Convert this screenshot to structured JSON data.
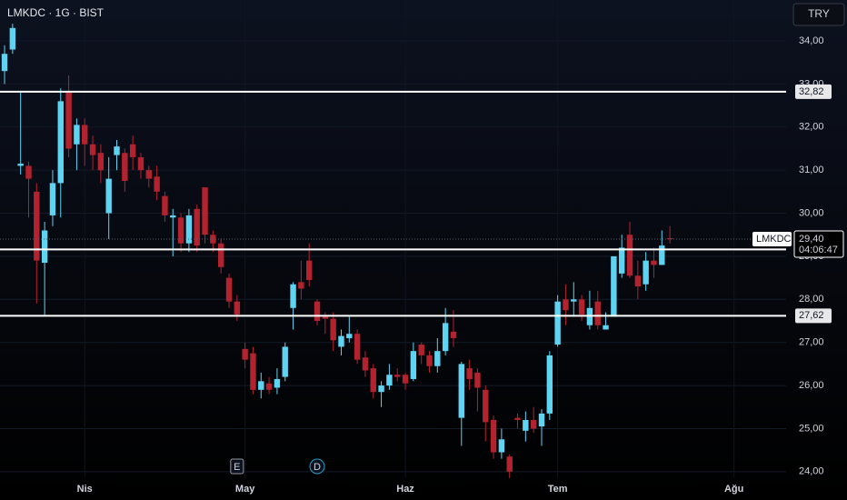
{
  "chart_data": {
    "type": "candlestick",
    "title": "LMKDC · 1G · BIST",
    "currency": "TRY",
    "symbol": "LMKDC",
    "up_color": "#5ed4f2",
    "down_color": "#b3222f",
    "ylim": [
      23.87,
      34.95
    ],
    "xlim": [
      -0.57,
      97.5
    ],
    "yticks": [
      {
        "value": 24,
        "label": "24,00"
      },
      {
        "value": 25,
        "label": "25,00"
      },
      {
        "value": 26,
        "label": "26,00"
      },
      {
        "value": 27,
        "label": "27,00"
      },
      {
        "value": 28,
        "label": "28,00"
      },
      {
        "value": 29,
        "label": "29,00"
      },
      {
        "value": 30,
        "label": "30,00"
      },
      {
        "value": 31,
        "label": "31,00"
      },
      {
        "value": 32,
        "label": "32,00"
      },
      {
        "value": 33,
        "label": "33,00"
      },
      {
        "value": 34,
        "label": "34,00"
      }
    ],
    "xticks": [
      {
        "value": 10,
        "label": "Nis"
      },
      {
        "value": 30,
        "label": "May"
      },
      {
        "value": 50,
        "label": "Haz"
      },
      {
        "value": 69,
        "label": "Tem"
      },
      {
        "value": 91,
        "label": "Ağu"
      }
    ],
    "levels": [
      {
        "value": 32.82,
        "label": "32,82"
      },
      {
        "value": 29.16,
        "label": "29,16"
      },
      {
        "value": 27.62,
        "label": "27,62"
      }
    ],
    "last_price": {
      "value": 29.4,
      "label": "29,40"
    },
    "countdown": "04:06:47",
    "events": [
      {
        "x": 29,
        "label": "E"
      },
      {
        "x": 39,
        "label": "D"
      }
    ],
    "open": [
      33.3,
      33.8,
      31.1,
      31.1,
      30.5,
      28.85,
      29.95,
      30.7,
      32.8,
      31.6,
      32.05,
      31.6,
      31.4,
      30.0,
      31.35,
      31.4,
      31.6,
      31.3,
      31.0,
      30.85,
      30.4,
      29.9,
      29.9,
      29.3,
      30.1,
      30.6,
      29.5,
      29.3,
      28.5,
      27.95,
      26.85,
      26.75,
      25.9,
      26.05,
      25.95,
      26.2,
      27.8,
      28.4,
      28.9,
      27.95,
      27.6,
      27.55,
      26.9,
      27.1,
      27.2,
      26.65,
      26.4,
      25.85,
      26.0,
      26.25,
      26.25,
      26.15,
      26.95,
      26.7,
      26.45,
      26.8,
      27.25,
      25.25,
      26.4,
      26.3,
      25.9,
      25.2,
      24.45,
      24.35,
      25.25,
      24.95,
      25.2,
      25.05,
      25.35,
      26.95,
      28.0,
      27.95,
      28.0,
      27.4,
      27.95,
      27.3,
      27.6,
      28.6,
      29.5,
      28.55,
      28.35,
      28.9,
      28.8,
      29.42
    ],
    "high": [
      33.9,
      34.4,
      32.8,
      31.2,
      30.7,
      29.8,
      31.0,
      32.9,
      33.2,
      32.2,
      32.2,
      31.8,
      31.6,
      31.3,
      31.7,
      31.5,
      31.8,
      31.4,
      31.1,
      31.1,
      30.5,
      30.1,
      30.0,
      30.1,
      30.2,
      30.6,
      29.6,
      29.4,
      28.6,
      28.1,
      27.0,
      26.9,
      26.3,
      26.2,
      26.4,
      27.0,
      28.4,
      28.9,
      29.3,
      28.0,
      27.7,
      27.7,
      27.3,
      27.6,
      27.3,
      26.8,
      26.5,
      26.1,
      26.5,
      26.4,
      26.3,
      27.0,
      27.0,
      26.8,
      27.1,
      27.8,
      27.75,
      26.55,
      26.6,
      26.4,
      26.0,
      25.3,
      25.0,
      24.4,
      25.35,
      25.4,
      25.5,
      25.45,
      26.8,
      28.1,
      28.35,
      28.4,
      28.1,
      28.2,
      28.2,
      27.7,
      29.0,
      29.5,
      29.8,
      28.9,
      29.1,
      29.2,
      29.6,
      29.7
    ],
    "low": [
      33.0,
      33.7,
      30.9,
      29.9,
      27.9,
      27.6,
      29.7,
      29.9,
      31.3,
      31.0,
      31.1,
      31.0,
      30.7,
      29.4,
      31.0,
      30.5,
      31.0,
      30.8,
      30.6,
      30.3,
      29.8,
      29.0,
      29.1,
      29.1,
      29.1,
      29.3,
      29.1,
      28.6,
      27.8,
      27.5,
      26.4,
      25.8,
      25.7,
      25.8,
      25.8,
      26.1,
      27.3,
      28.0,
      28.3,
      27.4,
      27.2,
      26.8,
      26.7,
      27.0,
      26.5,
      26.2,
      25.7,
      25.5,
      25.9,
      26.1,
      25.9,
      26.1,
      26.5,
      26.3,
      26.3,
      26.7,
      26.9,
      24.6,
      25.9,
      25.4,
      24.7,
      24.3,
      24.3,
      23.85,
      25.0,
      24.7,
      24.9,
      24.6,
      25.2,
      26.9,
      27.4,
      27.6,
      27.5,
      27.3,
      27.3,
      27.3,
      27.6,
      28.5,
      28.5,
      28.0,
      28.2,
      28.5,
      28.8,
      29.3
    ],
    "close": [
      33.7,
      34.3,
      31.15,
      30.8,
      28.9,
      29.6,
      30.7,
      32.6,
      31.5,
      32.05,
      31.6,
      31.35,
      31.0,
      30.8,
      31.55,
      30.75,
      31.3,
      31.0,
      30.8,
      30.5,
      29.95,
      29.95,
      29.3,
      29.95,
      29.25,
      29.5,
      29.3,
      28.75,
      27.95,
      27.65,
      26.6,
      25.9,
      26.1,
      25.9,
      26.15,
      26.9,
      28.35,
      28.25,
      28.45,
      27.5,
      27.55,
      27.05,
      27.15,
      27.2,
      26.6,
      26.35,
      25.85,
      26.0,
      26.25,
      26.2,
      26.05,
      26.8,
      26.7,
      26.45,
      26.8,
      27.45,
      27.1,
      26.5,
      26.15,
      25.95,
      25.15,
      24.45,
      24.75,
      24.0,
      25.2,
      25.2,
      25.0,
      25.35,
      26.7,
      27.95,
      27.75,
      28.0,
      27.65,
      27.8,
      27.4,
      27.4,
      29.0,
      29.2,
      28.55,
      28.3,
      28.9,
      28.8,
      29.25,
      29.4
    ]
  }
}
